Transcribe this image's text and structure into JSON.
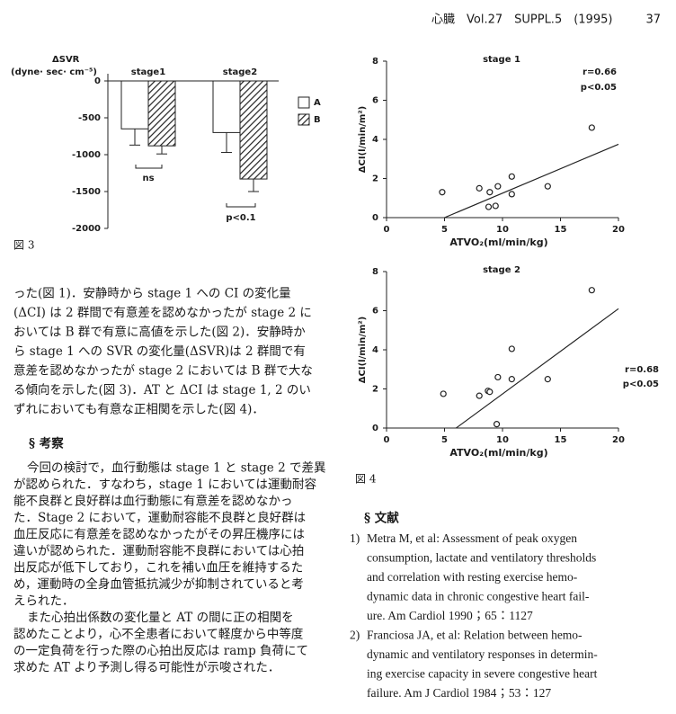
{
  "header": {
    "journal": "心臓　Vol.27　SUPPL.5　(1995)",
    "page": "37"
  },
  "chart_data": [
    {
      "type": "bar",
      "y_label": "ΔSVR",
      "y_unit": "(dyne· sec· cm⁻⁵)",
      "categories": [
        "stage1",
        "stage2"
      ],
      "series": [
        {
          "name": "A",
          "color": "#ffffff",
          "hatch": false,
          "values": [
            -650,
            -700
          ],
          "errors": [
            220,
            270
          ]
        },
        {
          "name": "B",
          "color": "#ffffff",
          "hatch": true,
          "values": [
            -880,
            -1330
          ],
          "errors": [
            110,
            170
          ]
        }
      ],
      "ylim": [
        -2000,
        0
      ],
      "yticks": [
        0,
        -500,
        -1000,
        -1500,
        -2000
      ],
      "annotations": [
        "ns",
        "p<0.1"
      ],
      "caption": "図 3"
    },
    {
      "type": "scatter",
      "title": "stage  1",
      "x_label": "ATVO₂(ml/min/kg)",
      "y_label": "ΔCI(l/min/m²)",
      "x": [
        4.8,
        8.0,
        8.9,
        8.8,
        9.4,
        9.6,
        10.8,
        10.8,
        13.9,
        17.7
      ],
      "values": [
        1.3,
        1.5,
        1.3,
        0.55,
        0.6,
        1.6,
        2.1,
        1.2,
        1.6,
        4.6
      ],
      "fit": {
        "x": [
          5,
          20
        ],
        "y": [
          0,
          3.75
        ]
      },
      "xlim": [
        0,
        20
      ],
      "xticks": [
        0,
        5,
        10,
        15,
        20
      ],
      "ylim": [
        0,
        8
      ],
      "yticks": [
        0,
        2,
        4,
        6,
        8
      ],
      "annotations": [
        "r=0.66",
        "p<0.05"
      ]
    },
    {
      "type": "scatter",
      "title": "stage  2",
      "x_label": "ATVO₂(ml/min/kg)",
      "y_label": "ΔCI(l/min/m²)",
      "x": [
        4.9,
        8.0,
        8.75,
        8.9,
        9.6,
        9.5,
        10.8,
        10.8,
        13.9,
        17.7
      ],
      "values": [
        1.75,
        1.65,
        1.9,
        1.85,
        2.6,
        0.2,
        4.05,
        2.5,
        2.5,
        7.05
      ],
      "fit": {
        "x": [
          6,
          20
        ],
        "y": [
          0,
          6.1
        ]
      },
      "xlim": [
        0,
        20
      ],
      "xticks": [
        0,
        5,
        10,
        15,
        20
      ],
      "ylim": [
        0,
        8
      ],
      "yticks": [
        0,
        2,
        4,
        6,
        8
      ],
      "annotations": [
        "r=0.68",
        "p<0.05"
      ],
      "caption": "図 4"
    }
  ],
  "results": [
    "った(図 1)．安静時から stage 1 への CI の変化量",
    "(ΔCI) は 2 群間で有意差を認めなかったが stage 2 に",
    "おいては B 群で有意に高値を示した(図 2)．安静時か",
    "ら stage 1 への SVR の変化量(ΔSVR)は 2 群間で有",
    "意差を認めなかったが stage 2 においては B 群で大な",
    "る傾向を示した(図 3)．AT と ΔCI は stage 1, 2 のい",
    "ずれにおいても有意な正相関を示した(図 4)．"
  ],
  "discussion": {
    "heading": "§  考察",
    "lines": [
      "今回の検討で，血行動態は stage 1 と stage 2 で差異",
      "が認められた．すなわち，stage 1 においては運動耐容",
      "能不良群と良好群は血行動態に有意差を認めなかっ",
      "た．Stage 2 において，運動耐容能不良群と良好群は",
      "血圧反応に有意差を認めなかったがその昇圧機序には",
      "違いが認められた．運動耐容能不良群においては心拍",
      "出反応が低下しており，これを補い血圧を維持するた",
      "め，運動時の全身血管抵抗減少が抑制されていると考",
      "えられた．",
      "また心拍出係数の変化量と AT の間に正の相関を",
      "認めたことより，心不全患者において軽度から中等度",
      "の一定負荷を行った際の心拍出反応は ramp 負荷にて",
      "求めた AT より予測し得る可能性が示唆された．"
    ]
  },
  "references": {
    "heading": "§  文献",
    "items": [
      {
        "number": "1)",
        "lines": [
          "Metra M, et al: Assessment of peak oxygen",
          "consumption, lactate and ventilatory thresholds",
          "and correlation with resting exercise hemo-",
          "dynamic data in chronic congestive heart fail-",
          "ure. Am Cardiol 1990；65：1127"
        ]
      },
      {
        "number": "2)",
        "lines": [
          "Franciosa JA, et al: Relation between hemo-",
          "dynamic and ventilatory responses in determin-",
          "ing exercise capacity in severe congestive heart",
          "failure. Am J Cardiol 1984；53：127"
        ]
      }
    ]
  }
}
